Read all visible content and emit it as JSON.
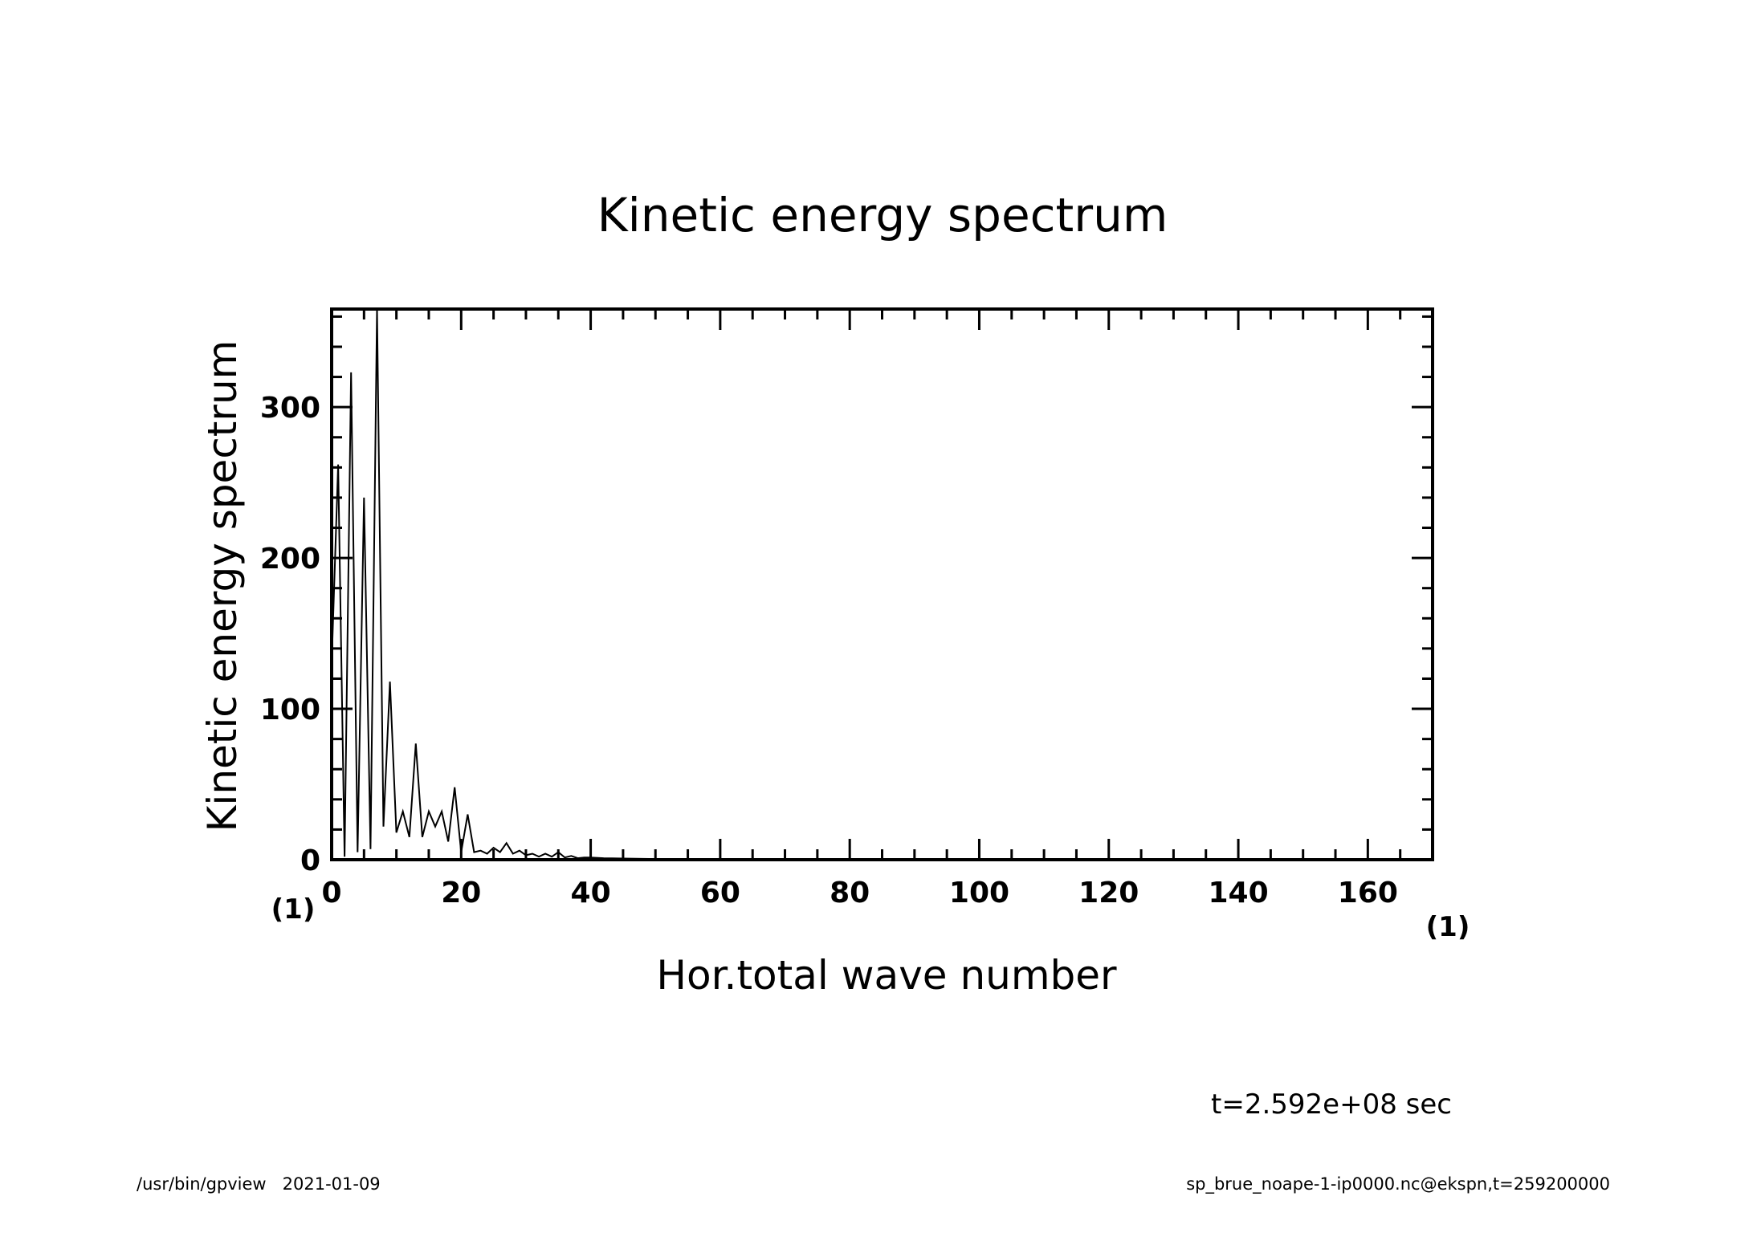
{
  "chart_data": {
    "type": "line",
    "title": "Kinetic energy spectrum",
    "xlabel": "Hor.total wave number",
    "ylabel": "Kinetic energy spectrum",
    "x_unit": "(1)",
    "y_unit": "(1)",
    "xlim": [
      0,
      170
    ],
    "ylim": [
      0,
      365
    ],
    "x_ticks": [
      "0",
      "20",
      "40",
      "60",
      "80",
      "100",
      "120",
      "140",
      "160"
    ],
    "x_tick_values": [
      0,
      20,
      40,
      60,
      80,
      100,
      120,
      140,
      160
    ],
    "y_ticks": [
      "0",
      "100",
      "200",
      "300"
    ],
    "y_tick_values": [
      0,
      100,
      200,
      300
    ],
    "grid": false,
    "series": [
      {
        "color": "#000000",
        "x": [
          0,
          1,
          2,
          3,
          4,
          5,
          6,
          7,
          8,
          9,
          10,
          11,
          12,
          13,
          14,
          15,
          16,
          17,
          18,
          19,
          20,
          21,
          22,
          23,
          24,
          25,
          26,
          27,
          28,
          29,
          30,
          31,
          32,
          33,
          34,
          35,
          36,
          37,
          38,
          39,
          40,
          42,
          45,
          50,
          60,
          80,
          100,
          120,
          140,
          160,
          170
        ],
        "y": [
          130,
          262,
          2,
          323,
          5,
          240,
          7,
          365,
          22,
          118,
          18,
          32,
          15,
          77,
          15,
          32,
          22,
          32,
          12,
          48,
          5,
          30,
          5,
          6,
          4,
          8,
          5,
          11,
          4,
          6,
          3,
          4,
          2,
          4,
          2,
          5,
          1.5,
          2.5,
          1,
          1.5,
          1.5,
          1,
          0.8,
          0.5,
          0.3,
          0.2,
          0.1,
          0.1,
          0.1,
          0.1,
          0.1
        ]
      }
    ]
  },
  "annotations": {
    "time": "t=2.592e+08 sec"
  },
  "footer": {
    "left": "/usr/bin/gpview   2021-01-09",
    "right": "sp_brue_noape-1-ip0000.nc@ekspn,t=259200000"
  }
}
